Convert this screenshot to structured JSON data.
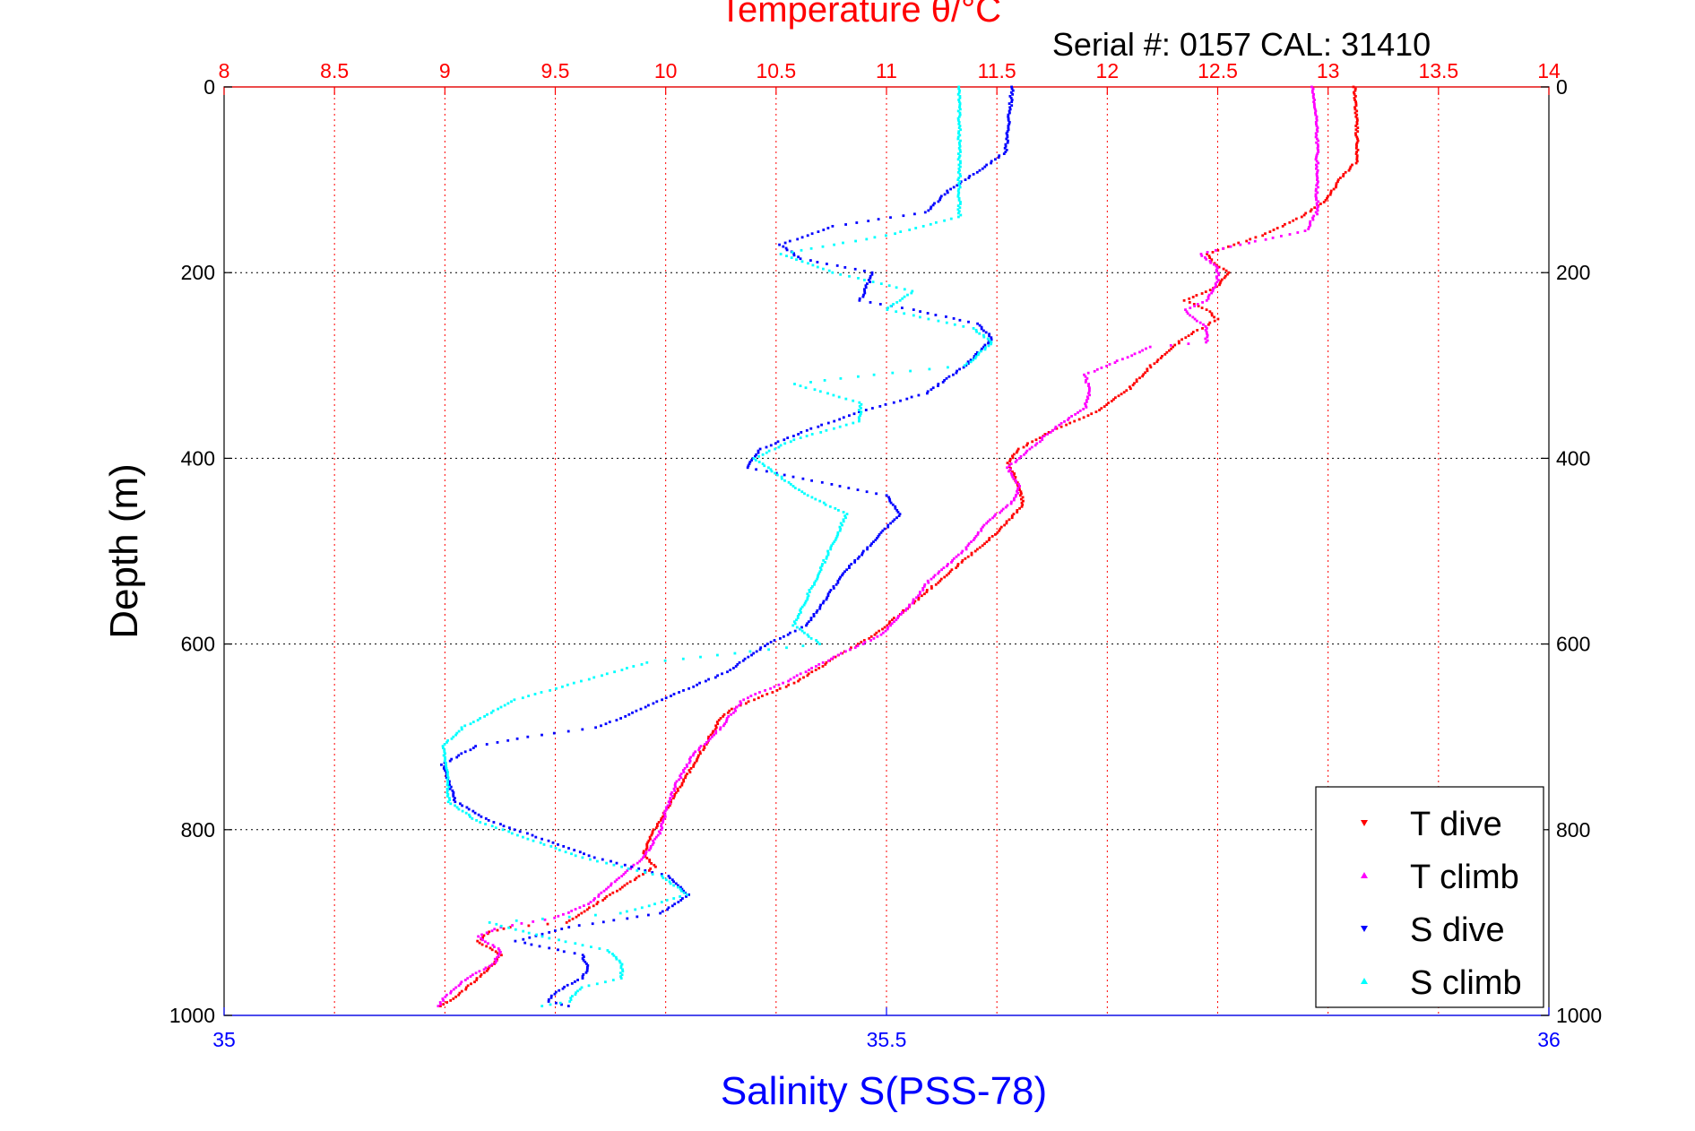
{
  "chart_data": {
    "type": "scatter",
    "title": "Temperature θ/°C",
    "subtitle": "Serial #: 0157  CAL: 31410",
    "ylabel": "Depth (m)",
    "xlabel_bottom": "Salinity S(PSS-78)",
    "y_axis": {
      "min": 0,
      "max": 1000,
      "inverted": true,
      "ticks": [
        0,
        200,
        400,
        600,
        800,
        1000
      ]
    },
    "x_top": {
      "min": 8,
      "max": 14,
      "ticks": [
        8,
        8.5,
        9,
        9.5,
        10,
        10.5,
        11,
        11.5,
        12,
        12.5,
        13,
        13.5,
        14
      ]
    },
    "x_bottom": {
      "min": 35,
      "max": 36,
      "ticks": [
        35,
        35.5,
        36
      ]
    },
    "grid": true,
    "colors": {
      "top_axis": "#ff0000",
      "bottom_axis": "#0000ff",
      "left_axis": "#000000",
      "grid_top": "#ff0000",
      "grid_left": "#000000"
    },
    "legend": {
      "placement": "bottom-right",
      "entries": [
        {
          "label": "T dive",
          "color": "#ff0000",
          "marker": "down-triangle"
        },
        {
          "label": "T climb",
          "color": "#ff00ff",
          "marker": "up-triangle"
        },
        {
          "label": "S dive",
          "color": "#0000ff",
          "marker": "down-triangle"
        },
        {
          "label": "S climb",
          "color": "#00ffff",
          "marker": "up-triangle"
        }
      ]
    },
    "series": [
      {
        "name": "T dive",
        "axis": "top",
        "color": "#ff0000",
        "points": [
          [
            13.12,
            0
          ],
          [
            13.13,
            40
          ],
          [
            13.13,
            80
          ],
          [
            13.05,
            100
          ],
          [
            13.0,
            120
          ],
          [
            12.88,
            140
          ],
          [
            12.7,
            160
          ],
          [
            12.45,
            180
          ],
          [
            12.48,
            190
          ],
          [
            12.55,
            200
          ],
          [
            12.5,
            215
          ],
          [
            12.35,
            230
          ],
          [
            12.45,
            240
          ],
          [
            12.5,
            250
          ],
          [
            12.35,
            270
          ],
          [
            12.2,
            300
          ],
          [
            12.1,
            325
          ],
          [
            11.95,
            350
          ],
          [
            11.75,
            370
          ],
          [
            11.6,
            390
          ],
          [
            11.55,
            405
          ],
          [
            11.6,
            430
          ],
          [
            11.62,
            450
          ],
          [
            11.5,
            480
          ],
          [
            11.35,
            510
          ],
          [
            11.2,
            540
          ],
          [
            11.05,
            570
          ],
          [
            10.95,
            590
          ],
          [
            10.8,
            610
          ],
          [
            10.6,
            640
          ],
          [
            10.3,
            670
          ],
          [
            10.25,
            680
          ],
          [
            10.2,
            700
          ],
          [
            10.15,
            720
          ],
          [
            10.1,
            740
          ],
          [
            10.05,
            760
          ],
          [
            10.0,
            780
          ],
          [
            9.95,
            800
          ],
          [
            9.93,
            810
          ],
          [
            9.9,
            825
          ],
          [
            9.95,
            840
          ],
          [
            9.75,
            870
          ],
          [
            9.55,
            900
          ],
          [
            9.3,
            905
          ],
          [
            9.2,
            910
          ],
          [
            9.15,
            920
          ],
          [
            9.25,
            935
          ],
          [
            9.2,
            950
          ],
          [
            9.15,
            960
          ],
          [
            9.05,
            980
          ],
          [
            8.98,
            990
          ]
        ]
      },
      {
        "name": "T climb",
        "axis": "top",
        "color": "#ff00ff",
        "points": [
          [
            12.93,
            0
          ],
          [
            12.95,
            40
          ],
          [
            12.95,
            80
          ],
          [
            12.95,
            110
          ],
          [
            12.95,
            135
          ],
          [
            12.9,
            155
          ],
          [
            12.6,
            170
          ],
          [
            12.42,
            180
          ],
          [
            12.5,
            195
          ],
          [
            12.5,
            210
          ],
          [
            12.45,
            230
          ],
          [
            12.35,
            240
          ],
          [
            12.45,
            260
          ],
          [
            12.45,
            275
          ],
          [
            12.2,
            280
          ],
          [
            12.05,
            295
          ],
          [
            11.9,
            310
          ],
          [
            11.92,
            330
          ],
          [
            11.9,
            345
          ],
          [
            11.75,
            370
          ],
          [
            11.65,
            390
          ],
          [
            11.55,
            410
          ],
          [
            11.6,
            430
          ],
          [
            11.58,
            445
          ],
          [
            11.45,
            470
          ],
          [
            11.35,
            500
          ],
          [
            11.2,
            530
          ],
          [
            11.1,
            560
          ],
          [
            10.98,
            590
          ],
          [
            10.8,
            610
          ],
          [
            10.55,
            640
          ],
          [
            10.35,
            660
          ],
          [
            10.25,
            690
          ],
          [
            10.12,
            720
          ],
          [
            10.05,
            750
          ],
          [
            10.0,
            780
          ],
          [
            9.98,
            800
          ],
          [
            9.9,
            830
          ],
          [
            9.8,
            850
          ],
          [
            9.65,
            880
          ],
          [
            9.5,
            895
          ],
          [
            9.25,
            905
          ],
          [
            9.15,
            915
          ],
          [
            9.25,
            930
          ],
          [
            9.22,
            945
          ],
          [
            9.1,
            960
          ],
          [
            9.0,
            980
          ],
          [
            8.97,
            990
          ]
        ]
      },
      {
        "name": "S dive",
        "axis": "bottom",
        "color": "#0000ff",
        "points": [
          [
            35.595,
            0
          ],
          [
            35.592,
            40
          ],
          [
            35.59,
            70
          ],
          [
            35.57,
            90
          ],
          [
            35.548,
            110
          ],
          [
            35.53,
            135
          ],
          [
            35.46,
            150
          ],
          [
            35.42,
            170
          ],
          [
            35.435,
            185
          ],
          [
            35.49,
            200
          ],
          [
            35.48,
            230
          ],
          [
            35.52,
            240
          ],
          [
            35.568,
            255
          ],
          [
            35.58,
            270
          ],
          [
            35.56,
            300
          ],
          [
            35.53,
            330
          ],
          [
            35.48,
            350
          ],
          [
            35.44,
            370
          ],
          [
            35.405,
            390
          ],
          [
            35.395,
            410
          ],
          [
            35.43,
            420
          ],
          [
            35.5,
            440
          ],
          [
            35.51,
            460
          ],
          [
            35.49,
            490
          ],
          [
            35.47,
            520
          ],
          [
            35.455,
            550
          ],
          [
            35.44,
            580
          ],
          [
            35.41,
            600
          ],
          [
            35.38,
            630
          ],
          [
            35.33,
            660
          ],
          [
            35.3,
            680
          ],
          [
            35.28,
            690
          ],
          [
            35.23,
            700
          ],
          [
            35.19,
            710
          ],
          [
            35.165,
            730
          ],
          [
            35.17,
            750
          ],
          [
            35.175,
            770
          ],
          [
            35.2,
            790
          ],
          [
            35.24,
            810
          ],
          [
            35.28,
            830
          ],
          [
            35.335,
            850
          ],
          [
            35.35,
            870
          ],
          [
            35.33,
            890
          ],
          [
            35.26,
            905
          ],
          [
            35.22,
            920
          ],
          [
            35.27,
            935
          ],
          [
            35.275,
            950
          ],
          [
            35.27,
            960
          ],
          [
            35.25,
            975
          ],
          [
            35.245,
            985
          ],
          [
            35.26,
            990
          ]
        ]
      },
      {
        "name": "S climb",
        "axis": "bottom",
        "color": "#00ffff",
        "points": [
          [
            35.555,
            0
          ],
          [
            35.555,
            40
          ],
          [
            35.555,
            80
          ],
          [
            35.555,
            110
          ],
          [
            35.555,
            140
          ],
          [
            35.5,
            160
          ],
          [
            35.46,
            170
          ],
          [
            35.42,
            180
          ],
          [
            35.46,
            200
          ],
          [
            35.52,
            220
          ],
          [
            35.5,
            240
          ],
          [
            35.565,
            260
          ],
          [
            35.58,
            275
          ],
          [
            35.56,
            300
          ],
          [
            35.49,
            310
          ],
          [
            35.43,
            320
          ],
          [
            35.48,
            340
          ],
          [
            35.48,
            360
          ],
          [
            35.43,
            380
          ],
          [
            35.4,
            400
          ],
          [
            35.42,
            420
          ],
          [
            35.44,
            440
          ],
          [
            35.47,
            460
          ],
          [
            35.46,
            490
          ],
          [
            35.45,
            520
          ],
          [
            35.44,
            550
          ],
          [
            35.43,
            580
          ],
          [
            35.45,
            600
          ],
          [
            35.32,
            620
          ],
          [
            35.27,
            640
          ],
          [
            35.22,
            660
          ],
          [
            35.18,
            690
          ],
          [
            35.165,
            710
          ],
          [
            35.168,
            740
          ],
          [
            35.17,
            770
          ],
          [
            35.19,
            790
          ],
          [
            35.23,
            810
          ],
          [
            35.27,
            830
          ],
          [
            35.33,
            850
          ],
          [
            35.35,
            870
          ],
          [
            35.3,
            890
          ],
          [
            35.2,
            900
          ],
          [
            35.24,
            915
          ],
          [
            35.29,
            930
          ],
          [
            35.3,
            945
          ],
          [
            35.3,
            960
          ],
          [
            35.27,
            970
          ],
          [
            35.26,
            985
          ],
          [
            35.24,
            990
          ]
        ]
      }
    ]
  }
}
